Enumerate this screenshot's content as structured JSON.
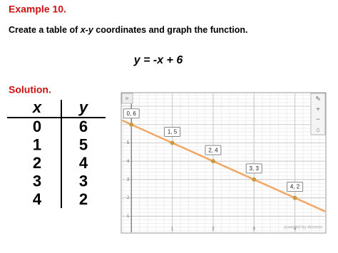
{
  "header": {
    "title": "Example 10.",
    "instruction": [
      "Create a table of ",
      "x-y",
      " coordinates and graph the function."
    ],
    "equation": "y = -x + 6"
  },
  "solution": "Solution.",
  "table": {
    "headers": [
      "x",
      "y"
    ],
    "rows": [
      [
        0,
        6
      ],
      [
        1,
        5
      ],
      [
        2,
        4
      ],
      [
        3,
        3
      ],
      [
        4,
        2
      ]
    ]
  },
  "graph": {
    "xlim": [
      -0.23,
      4.74
    ],
    "ylim": [
      0.12,
      7.7
    ],
    "xticks": [
      1,
      2,
      3,
      4
    ],
    "yticks": [
      1,
      2,
      3,
      4,
      5
    ],
    "points": {
      "x": [
        0,
        1,
        2,
        3,
        4
      ],
      "y": [
        6,
        5,
        4,
        3,
        2
      ],
      "labels": [
        "0, 6",
        "1, 5",
        "2, 4",
        "3, 3",
        "4, 2"
      ]
    },
    "line_color": "#f2a765",
    "point_color": "#c99a3e",
    "credit": "powered by desmos"
  }
}
